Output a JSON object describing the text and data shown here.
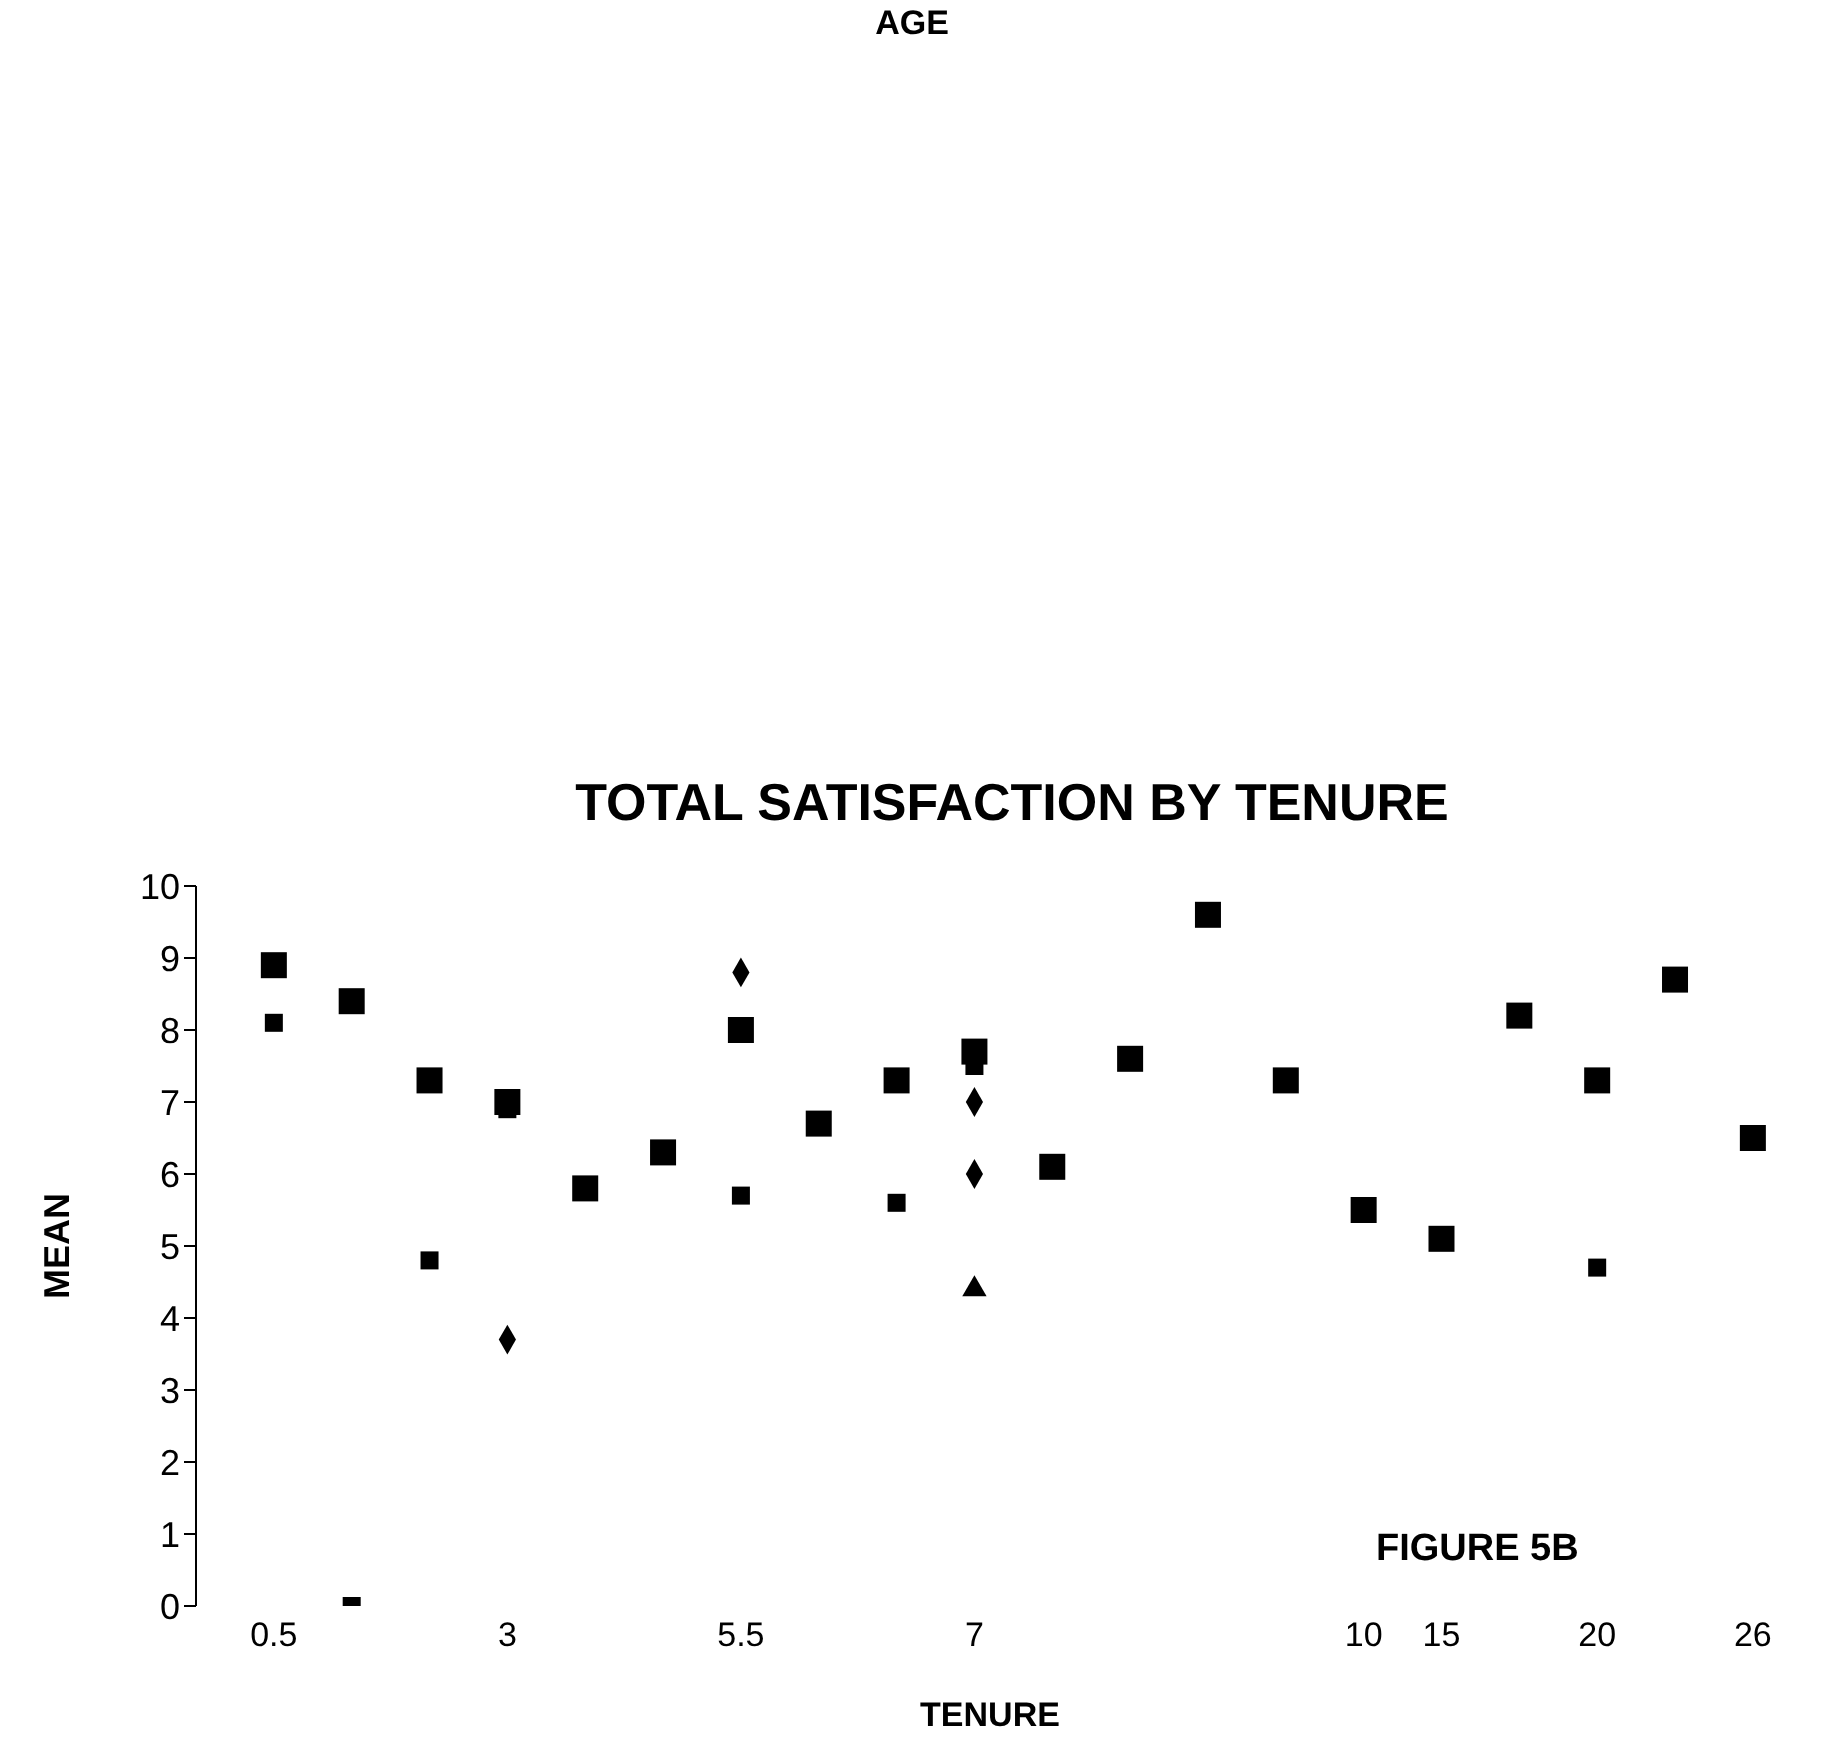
{
  "chart_data": {
    "type": "scatter",
    "title": "TOTAL SATISFACTION BY TENURE",
    "xlabel": "TENURE",
    "ylabel": "MEAN",
    "annotations": [
      "AGE",
      "FIGURE 5B"
    ],
    "categories": [
      "0.5",
      null,
      null,
      "3",
      null,
      null,
      "5.5",
      null,
      null,
      "7",
      null,
      null,
      null,
      null,
      "10",
      "15",
      null,
      "20",
      null,
      "26"
    ],
    "ylim": [
      0,
      10
    ],
    "yticks": [
      0,
      1,
      2,
      3,
      4,
      5,
      6,
      7,
      8,
      9,
      10
    ],
    "series": [
      {
        "color": "#000000",
        "marker": "square",
        "values": [
          8.9,
          8.4,
          7.3,
          7.0,
          5.8,
          6.3,
          8.0,
          6.7,
          7.3,
          7.7,
          6.1,
          7.6,
          9.6,
          7.3,
          5.5,
          5.1,
          8.2,
          7.3,
          8.7,
          6.5
        ]
      },
      {
        "color": "#000000",
        "marker": "square",
        "values": [
          8.1,
          0,
          4.8,
          6.9,
          null,
          null,
          5.7,
          null,
          5.6,
          7.5,
          null,
          null,
          null,
          null,
          null,
          null,
          null,
          4.7,
          null,
          null
        ]
      },
      {
        "color": "#000000",
        "marker": "diamond",
        "values": [
          null,
          null,
          null,
          3.7,
          null,
          null,
          8.8,
          null,
          null,
          7.0,
          null,
          null,
          null,
          null,
          null,
          null,
          null,
          null,
          null,
          null
        ]
      },
      {
        "color": "#000000",
        "marker": "diamond",
        "values": [
          null,
          null,
          null,
          null,
          null,
          null,
          null,
          null,
          null,
          6.0,
          null,
          null,
          null,
          null,
          null,
          null,
          null,
          null,
          null,
          null
        ]
      },
      {
        "color": "#000000",
        "marker": "triangle",
        "values": [
          null,
          null,
          null,
          null,
          null,
          null,
          null,
          null,
          null,
          4.4,
          null,
          null,
          null,
          null,
          null,
          null,
          null,
          null,
          null,
          null
        ]
      }
    ]
  }
}
